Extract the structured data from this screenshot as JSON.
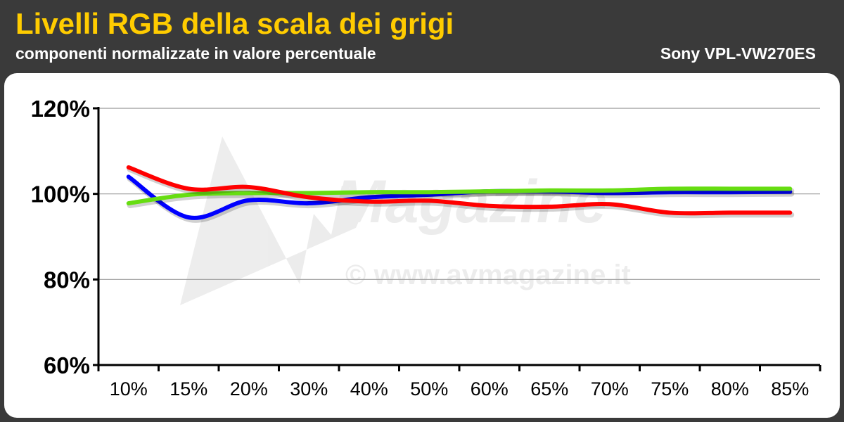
{
  "header": {
    "title": "Livelli RGB della scala dei grigi",
    "subtitle": "componenti normalizzate in valore percentuale",
    "model": "Sony VPL-VW270ES"
  },
  "watermark": {
    "brand": "Magazine",
    "copyright": "© www.avmagazine.it"
  },
  "colors": {
    "header_bg": "#3a3a3a",
    "title": "#ffcc00",
    "red": "#ff0000",
    "green": "#66dd11",
    "blue": "#0000ff"
  },
  "chart_data": {
    "type": "line",
    "title": "Livelli RGB della scala dei grigi",
    "subtitle": "componenti normalizzate in valore percentuale",
    "categories": [
      "10%",
      "15%",
      "20%",
      "30%",
      "40%",
      "50%",
      "60%",
      "65%",
      "70%",
      "75%",
      "80%",
      "85%"
    ],
    "ylim": [
      60,
      120
    ],
    "yticks": [
      60,
      80,
      100,
      120
    ],
    "ytick_labels": [
      "60%",
      "80%",
      "100%",
      "120%"
    ],
    "grid": true,
    "series": [
      {
        "color": "#0000ff",
        "values": [
          104,
          94.5,
          98.5,
          97.8,
          99.2,
          99.8,
          100.6,
          100.6,
          100.2,
          100.4,
          100.4,
          100.5
        ]
      },
      {
        "color": "#66dd11",
        "values": [
          97.8,
          99.8,
          100.2,
          100.2,
          100.4,
          100.4,
          100.6,
          100.8,
          100.8,
          101.2,
          101.2,
          101.2
        ]
      },
      {
        "color": "#ff0000",
        "values": [
          106.2,
          101.2,
          101.6,
          99.2,
          98.2,
          98.4,
          97.2,
          97.0,
          97.6,
          95.6,
          95.6,
          95.6
        ]
      }
    ]
  }
}
